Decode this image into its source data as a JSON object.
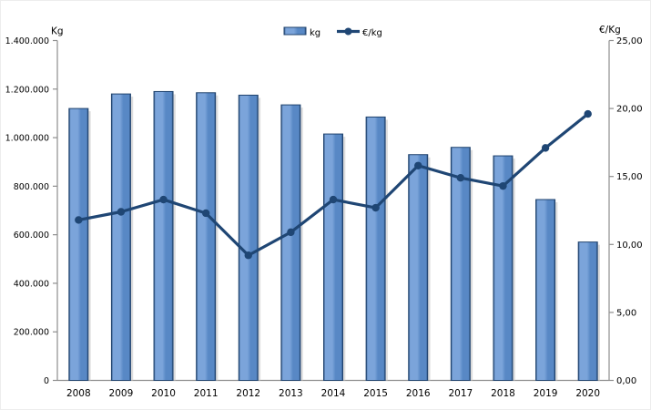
{
  "chart_data": {
    "type": "combo",
    "categories": [
      "2008",
      "2009",
      "2010",
      "2011",
      "2012",
      "2013",
      "2014",
      "2015",
      "2016",
      "2017",
      "2018",
      "2019",
      "2020"
    ],
    "series": [
      {
        "name": "kg",
        "type": "bar",
        "axis": "left",
        "values": [
          1120000,
          1180000,
          1190000,
          1185000,
          1175000,
          1135000,
          1015000,
          1085000,
          930000,
          960000,
          925000,
          745000,
          570000
        ]
      },
      {
        "name": "€/kg",
        "type": "line",
        "axis": "right",
        "values": [
          11.8,
          12.4,
          13.3,
          12.3,
          9.2,
          10.9,
          13.3,
          12.7,
          15.8,
          14.9,
          14.3,
          17.1,
          19.6
        ]
      }
    ],
    "axes": {
      "left": {
        "title": "Kg",
        "min": 0,
        "max": 1400000,
        "step": 200000,
        "tick_labels": [
          "0",
          "200.000",
          "400.000",
          "600.000",
          "800.000",
          "1.000.000",
          "1.200.000",
          "1.400.000"
        ]
      },
      "right": {
        "title": "€/Kg",
        "min": 0,
        "max": 25,
        "step": 5,
        "tick_labels": [
          "0,00",
          "5,00",
          "10,00",
          "15,00",
          "20,00",
          "25,00"
        ]
      }
    },
    "legend": {
      "position": "top-center",
      "items": [
        "kg",
        "€/kg"
      ]
    },
    "grid": "off",
    "colors": {
      "bar_fill_light": "#7ba4da",
      "bar_fill_mid": "#5888c5",
      "bar_edge": "#20436e",
      "bar_shadow": "#cdcdcd",
      "line": "#1f4674",
      "axis": "#8e8e8e",
      "text": "#000000"
    }
  }
}
